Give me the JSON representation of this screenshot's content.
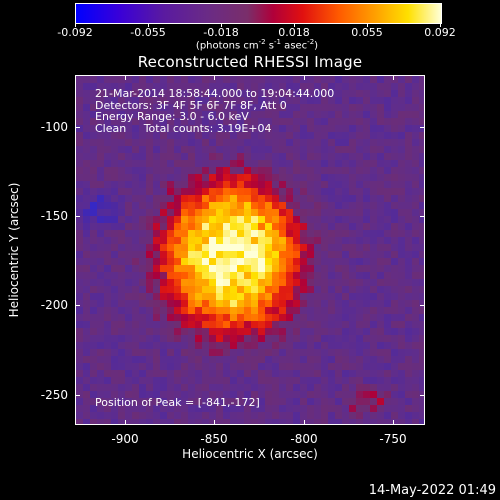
{
  "colorbar": {
    "tick_labels": [
      "-0.092",
      "-0.055",
      "-0.018",
      "0.018",
      "0.055",
      "0.092"
    ],
    "unit_parts": {
      "open": "(photons cm",
      "exp1": "-2",
      "s": " s",
      "exp2": "-1",
      "asec": " asec",
      "exp3": "-2",
      "close": ")"
    }
  },
  "title": "Reconstructed RHESSI Image",
  "annotations": {
    "line1": "21-Mar-2014 18:58:44.000 to 19:04:44.000",
    "line2": "Detectors: 3F 4F 5F 6F 7F 8F, Att 0",
    "line3": "Energy Range: 3.0 - 6.0 keV",
    "line4": "Clean     Total counts: 3.19E+04",
    "peak": "Position of Peak = [-841,-172]"
  },
  "chart_data": {
    "type": "heatmap",
    "title": "Reconstructed RHESSI Image",
    "xlabel": "Heliocentric X (arcsec)",
    "ylabel": "Heliocentric Y (arcsec)",
    "xlim": [
      -928,
      -732
    ],
    "ylim": [
      -267,
      -71
    ],
    "x_ticks": [
      "-900",
      "-850",
      "-800",
      "-750"
    ],
    "y_ticks": [
      "-100",
      "-150",
      "-200",
      "-250"
    ],
    "x_tick_values": [
      -900,
      -850,
      -800,
      -750
    ],
    "y_tick_values": [
      -100,
      -150,
      -200,
      -250
    ],
    "colorbar_range": [
      -0.092,
      0.092
    ],
    "peak_position": [
      -841,
      -172
    ],
    "colors": {
      "background": "#552a85",
      "low": "#1a2ae0",
      "mid": "#c00020",
      "high": "#ffffd8"
    }
  },
  "timestamp": "14-May-2022 01:49"
}
